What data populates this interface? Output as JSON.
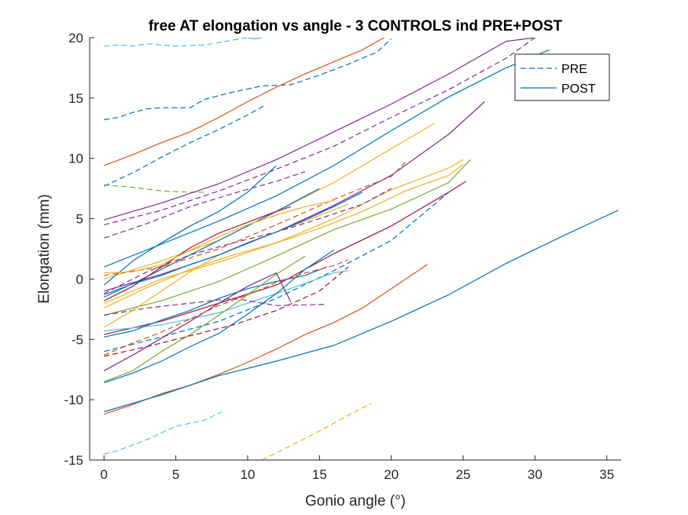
{
  "chart_data": {
    "type": "line",
    "title": "free AT elongation vs angle - 3 CONTROLS ind PRE+POST",
    "xlabel": "Gonio angle (°)",
    "ylabel": "Elongation (mm)",
    "xlim": [
      -1,
      36
    ],
    "ylim": [
      -15,
      20
    ],
    "xticks": [
      0,
      5,
      10,
      15,
      20,
      25,
      30,
      35
    ],
    "yticks": [
      -15,
      -10,
      -5,
      0,
      5,
      10,
      15,
      20
    ],
    "xtick_labels": [
      "0",
      "5",
      "10",
      "15",
      "20",
      "25",
      "30",
      "35"
    ],
    "ytick_labels": [
      "-15",
      "-10",
      "-5",
      "0",
      "5",
      "10",
      "15",
      "20"
    ],
    "grid": false,
    "legend": {
      "position": "top-right",
      "entries": [
        {
          "label": "PRE",
          "style": "dashed",
          "color": "#0072BD"
        },
        {
          "label": "POST",
          "style": "solid",
          "color": "#0072BD"
        }
      ]
    },
    "series": [
      {
        "style": "dashed",
        "color": "#4DBEEE",
        "x": [
          0,
          1,
          3,
          5,
          7,
          8.2
        ],
        "y": [
          -14.5,
          -14.2,
          -13.3,
          -12.2,
          -11.7,
          -11.0
        ]
      },
      {
        "style": "dashed",
        "color": "#EDB120",
        "x": [
          11,
          13,
          15,
          17,
          18.6
        ],
        "y": [
          -15,
          -13.8,
          -12.6,
          -11.3,
          -10.3
        ]
      },
      {
        "style": "dashed",
        "color": "#4DBEEE",
        "x": [
          0,
          1,
          2,
          3,
          5,
          7,
          9,
          10
        ],
        "y": [
          19.3,
          19.4,
          19.3,
          19.5,
          19.3,
          19.4,
          19.8,
          20
        ]
      },
      {
        "style": "solid",
        "color": "#4DBEEE",
        "x": [
          10,
          10.5,
          11
        ],
        "y": [
          20,
          19.9,
          20
        ]
      },
      {
        "style": "dashed",
        "color": "#0072BD",
        "x": [
          0,
          1,
          2,
          3,
          4,
          5,
          6,
          7,
          9,
          11,
          13,
          15,
          17,
          19,
          20
        ],
        "y": [
          13.2,
          13.4,
          13.8,
          14.1,
          14.2,
          14.2,
          14.2,
          14.9,
          15.5,
          16.0,
          16.1,
          16.9,
          17.8,
          18.8,
          19.9
        ]
      },
      {
        "style": "dashed",
        "color": "#0072BD",
        "x": [
          0,
          2,
          4,
          6,
          8,
          10,
          11.2
        ],
        "y": [
          7.7,
          8.8,
          10.1,
          11.3,
          12.4,
          13.6,
          14.4
        ]
      },
      {
        "style": "solid",
        "color": "#D95319",
        "x": [
          0,
          2,
          4,
          6,
          8,
          10,
          12,
          14,
          16,
          18,
          19.5
        ],
        "y": [
          9.4,
          10.3,
          11.3,
          12.2,
          13.4,
          14.7,
          15.9,
          17.0,
          18.0,
          19.0,
          20.0
        ]
      },
      {
        "style": "dashed",
        "color": "#77AC30",
        "x": [
          0,
          2,
          4,
          6,
          7
        ],
        "y": [
          7.8,
          7.6,
          7.3,
          7.2,
          7.2
        ]
      },
      {
        "style": "solid",
        "color": "#7E2F8E",
        "x": [
          0,
          4,
          8,
          12,
          16,
          20,
          24,
          28,
          30
        ],
        "y": [
          4.9,
          6.3,
          7.9,
          9.9,
          12.2,
          14.5,
          17.0,
          19.7,
          20.0
        ]
      },
      {
        "style": "dashed",
        "color": "#7E2F8E",
        "x": [
          0,
          4,
          8,
          12,
          16,
          20,
          24,
          28,
          30
        ],
        "y": [
          4.5,
          5.7,
          7.3,
          9.1,
          11.0,
          13.4,
          15.7,
          18.3,
          20.0
        ]
      },
      {
        "style": "dashed",
        "color": "#7E2F8E",
        "x": [
          0,
          3,
          6,
          9,
          12,
          14
        ],
        "y": [
          3.4,
          4.6,
          6.0,
          7.1,
          8.1,
          8.9
        ]
      },
      {
        "style": "solid",
        "color": "#0072BD",
        "x": [
          0,
          4,
          8,
          12,
          16,
          20,
          24,
          28,
          31
        ],
        "y": [
          1.0,
          2.9,
          4.8,
          6.9,
          9.4,
          12.3,
          15.1,
          17.5,
          19.0
        ]
      },
      {
        "style": "solid",
        "color": "#EDB120",
        "x": [
          0,
          4,
          8,
          12,
          16,
          20,
          23
        ],
        "y": [
          0.0,
          1.5,
          3.2,
          5.6,
          8.0,
          10.8,
          12.9
        ]
      },
      {
        "style": "solid",
        "color": "#7E2F8E",
        "x": [
          0,
          4,
          8,
          12,
          16,
          20,
          24,
          26.5
        ],
        "y": [
          -1.0,
          0.4,
          2.0,
          3.9,
          6.1,
          8.6,
          12.0,
          14.7
        ]
      },
      {
        "style": "solid",
        "color": "#0072BD",
        "x": [
          0,
          2,
          4,
          6,
          8,
          10,
          12
        ],
        "y": [
          -0.5,
          1.5,
          3.0,
          4.4,
          5.6,
          7.2,
          9.4
        ]
      },
      {
        "style": "solid",
        "color": "#0072BD",
        "x": [
          0,
          3,
          6,
          9,
          12,
          15
        ],
        "y": [
          -1.5,
          0.2,
          2.0,
          3.8,
          5.6,
          7.5
        ]
      },
      {
        "style": "solid",
        "color": "#EDB120",
        "x": [
          0,
          4,
          8,
          12,
          16,
          20,
          24,
          25
        ],
        "y": [
          -2.0,
          0.0,
          1.4,
          3.0,
          5.0,
          7.4,
          9.2,
          9.9
        ]
      },
      {
        "style": "solid",
        "color": "#77AC30",
        "x": [
          0,
          4,
          8,
          12,
          16,
          20,
          24,
          25.5
        ],
        "y": [
          -3.0,
          -1.8,
          -0.2,
          1.9,
          4.1,
          5.8,
          8.0,
          9.9
        ]
      },
      {
        "style": "dashed",
        "color": "#D95319",
        "x": [
          0,
          4,
          8,
          12,
          16,
          20,
          21
        ],
        "y": [
          0.3,
          1.0,
          2.5,
          4.5,
          6.6,
          8.5,
          9.7
        ]
      },
      {
        "style": "solid",
        "color": "#A2142F",
        "x": [
          0,
          4,
          8,
          12,
          16,
          20,
          24,
          25.2
        ],
        "y": [
          -4.6,
          -3.5,
          -2.0,
          -0.5,
          2.1,
          4.4,
          7.2,
          8.1
        ]
      },
      {
        "style": "dashed",
        "color": "#0072BD",
        "x": [
          0,
          4,
          8,
          12,
          16,
          20,
          24
        ],
        "y": [
          -6.0,
          -4.8,
          -3.5,
          -1.6,
          0.7,
          3.2,
          7.2
        ]
      },
      {
        "style": "solid",
        "color": "#4DBEEE",
        "x": [
          0,
          4,
          8,
          12,
          16,
          17
        ],
        "y": [
          -4.3,
          -3.8,
          -2.8,
          -1.2,
          0.5,
          0.7
        ]
      },
      {
        "style": "solid",
        "color": "#0072BD",
        "x": [
          0,
          2,
          4,
          6,
          8,
          10,
          12,
          14,
          15.5
        ],
        "y": [
          -4.8,
          -4.3,
          -3.4,
          -2.6,
          -1.6,
          -0.8,
          -0.2,
          0.3,
          1.0
        ]
      },
      {
        "style": "dashed",
        "color": "#7E2F8E",
        "x": [
          0,
          3,
          6,
          9,
          12,
          15.5
        ],
        "y": [
          -3.0,
          -2.4,
          -2.0,
          -1.6,
          -2.2,
          -2.1
        ]
      },
      {
        "style": "solid",
        "color": "#D95319",
        "x": [
          0,
          2,
          4,
          6,
          8,
          10,
          12,
          14,
          16,
          18,
          20,
          22.5
        ],
        "y": [
          -11.2,
          -10.4,
          -9.5,
          -8.8,
          -7.9,
          -6.9,
          -5.8,
          -4.6,
          -3.6,
          -2.4,
          -0.8,
          1.2
        ]
      },
      {
        "style": "solid",
        "color": "#0072BD",
        "x": [
          0,
          4,
          8,
          12,
          16,
          20,
          24,
          28,
          32,
          35.8
        ],
        "y": [
          -11.0,
          -9.6,
          -8.0,
          -6.8,
          -5.5,
          -3.5,
          -1.3,
          1.3,
          3.6,
          5.7
        ]
      },
      {
        "style": "solid",
        "color": "#0072BD",
        "x": [
          0,
          2,
          4,
          6,
          8,
          10,
          12,
          14,
          16
        ],
        "y": [
          -8.6,
          -7.8,
          -6.8,
          -5.6,
          -4.5,
          -2.9,
          -1.2,
          0.8,
          2.4
        ]
      },
      {
        "style": "solid",
        "color": "#77AC30",
        "x": [
          0,
          2,
          4,
          6,
          8,
          10,
          12,
          14
        ],
        "y": [
          -8.5,
          -7.6,
          -6.0,
          -4.6,
          -3.0,
          -1.3,
          0.4,
          1.9
        ]
      },
      {
        "style": "solid",
        "color": "#7E2F8E",
        "x": [
          0,
          2,
          4,
          6,
          8,
          10,
          12,
          13
        ],
        "y": [
          -7.6,
          -6.3,
          -4.9,
          -3.5,
          -2.0,
          -0.6,
          0.5,
          -1.9
        ]
      },
      {
        "style": "dashed",
        "color": "#D95319",
        "x": [
          0,
          2,
          4,
          6,
          8,
          10,
          12,
          14,
          16,
          17
        ],
        "y": [
          -6.3,
          -5.3,
          -4.4,
          -3.3,
          -2.2,
          -1.3,
          -0.3,
          0.5,
          1.1,
          1.6
        ]
      },
      {
        "style": "dashed",
        "color": "#A2142F",
        "x": [
          0,
          3,
          6,
          9,
          12,
          15,
          17
        ],
        "y": [
          -6.4,
          -5.6,
          -4.7,
          -3.8,
          -2.6,
          -1.0,
          1.0
        ]
      },
      {
        "style": "solid",
        "color": "#EDB120",
        "x": [
          0,
          2,
          4,
          6,
          8,
          10,
          12,
          14,
          17
        ],
        "y": [
          -4.0,
          -2.6,
          -1.0,
          0.6,
          2.0,
          3.0,
          3.9,
          4.8,
          6.2
        ]
      },
      {
        "style": "solid",
        "color": "#A2142F",
        "x": [
          0,
          2,
          4,
          6,
          8,
          10,
          12,
          13
        ],
        "y": [
          -1.8,
          -0.6,
          1.0,
          2.6,
          3.8,
          4.7,
          5.6,
          6.0
        ]
      },
      {
        "style": "dashed",
        "color": "#7E2F8E",
        "x": [
          0,
          3,
          6,
          9,
          12,
          15,
          18,
          20
        ],
        "y": [
          -1.2,
          0.6,
          2.0,
          3.0,
          3.9,
          5.0,
          6.2,
          7.5
        ]
      },
      {
        "style": "solid",
        "color": "#EDB120",
        "x": [
          0,
          2,
          4,
          6,
          8,
          10,
          12,
          14,
          16
        ],
        "y": [
          0.5,
          0.6,
          1.2,
          2.4,
          3.5,
          4.5,
          5.3,
          6.0,
          6.5
        ]
      },
      {
        "style": "solid",
        "color": "#0072BD",
        "x": [
          0,
          2,
          4,
          6,
          8,
          10,
          12,
          14,
          16,
          18
        ],
        "y": [
          -1.3,
          -0.4,
          0.3,
          1.2,
          2.0,
          3.0,
          3.9,
          4.9,
          6.0,
          7.2
        ]
      },
      {
        "style": "solid",
        "color": "#EDB120",
        "x": [
          0,
          3,
          6,
          9,
          12,
          15,
          18,
          21,
          24,
          25
        ],
        "y": [
          -2.4,
          -0.7,
          0.8,
          2.0,
          3.0,
          4.2,
          5.6,
          7.3,
          8.6,
          9.5
        ]
      }
    ]
  }
}
